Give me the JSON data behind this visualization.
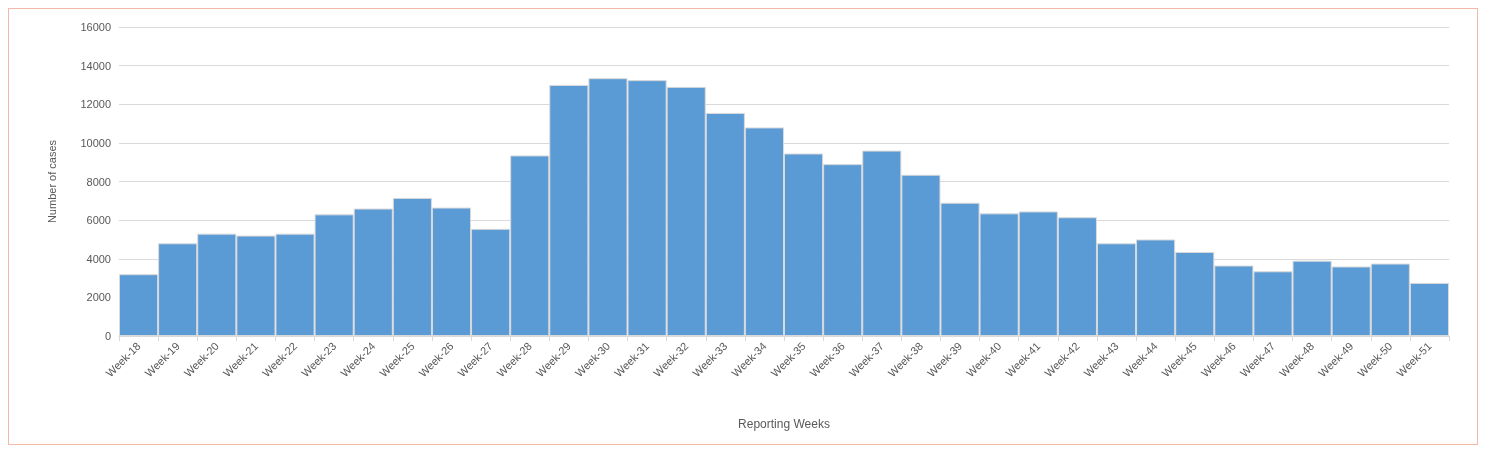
{
  "chart_data": {
    "type": "bar",
    "xlabel": "Reporting Weeks",
    "ylabel": "Number of cases",
    "categories": [
      "Week-18",
      "Week-19",
      "Week-20",
      "Week-21",
      "Week-22",
      "Week-23",
      "Week-24",
      "Week-25",
      "Week-26",
      "Week-27",
      "Week-28",
      "Week-29",
      "Week-30",
      "Week-31",
      "Week-32",
      "Week-33",
      "Week-34",
      "Week-35",
      "Week-36",
      "Week-37",
      "Week-38",
      "Week-39",
      "Week-40",
      "Week-41",
      "Week-42",
      "Week-43",
      "Week-44",
      "Week-45",
      "Week-46",
      "Week-47",
      "Week-48",
      "Week-49",
      "Week-50",
      "Week-51"
    ],
    "values": [
      3200,
      4800,
      5300,
      5200,
      5300,
      6300,
      6600,
      7150,
      6650,
      5550,
      9350,
      13000,
      13350,
      13250,
      12900,
      11550,
      10800,
      9450,
      8900,
      9600,
      8350,
      6900,
      6350,
      6450,
      6150,
      4800,
      5000,
      4350,
      3650,
      3350,
      3900,
      3600,
      3750,
      2750
    ],
    "color": "#5b9bd5",
    "ylim": [
      0,
      16000
    ],
    "yticks": [
      0,
      2000,
      4000,
      6000,
      8000,
      10000,
      12000,
      14000,
      16000
    ],
    "grid": "y"
  }
}
